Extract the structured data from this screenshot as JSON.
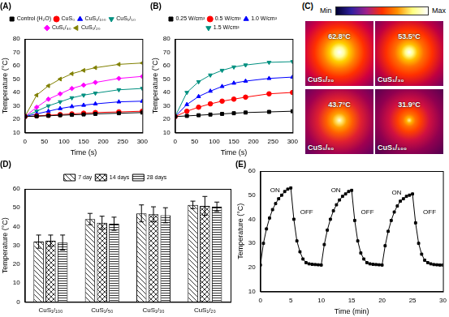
{
  "chart_data": [
    {
      "type": "line",
      "title": "(A)",
      "x_label": "Time (s)",
      "y_label": "Temperature (°C)",
      "x": [
        0,
        30,
        60,
        90,
        120,
        150,
        180,
        240,
        300
      ],
      "series": [
        {
          "name": "Control (H₂O)",
          "color": "#000000",
          "marker": "square",
          "values": [
            22,
            22.3,
            22.6,
            23,
            23.3,
            23.6,
            24,
            24.5,
            25
          ]
        },
        {
          "name": "CuS₀",
          "color": "#ff0000",
          "marker": "circle",
          "values": [
            22,
            22.5,
            23,
            23.5,
            24,
            24.5,
            25,
            25.5,
            26
          ]
        },
        {
          "name": "CuS₁/₁₀₀",
          "color": "#0000ff",
          "marker": "triangle-up",
          "values": [
            22,
            24,
            26,
            28,
            29.5,
            30.5,
            31.5,
            33,
            33.5
          ]
        },
        {
          "name": "CuS₁/₅₀",
          "color": "#009080",
          "marker": "triangle-down",
          "values": [
            22,
            26,
            30,
            33,
            36,
            38,
            39.5,
            42,
            43
          ]
        },
        {
          "name": "CuS₁/₃₀",
          "color": "#ff00ff",
          "marker": "diamond",
          "values": [
            22,
            29,
            35,
            39,
            43,
            45.5,
            47.5,
            50.5,
            52
          ]
        },
        {
          "name": "CuS₁/₂₀",
          "color": "#808000",
          "marker": "triangle-left",
          "values": [
            22,
            38,
            45,
            50,
            54,
            56.5,
            58.5,
            61,
            62
          ]
        }
      ],
      "xlim": [
        0,
        300
      ],
      "xticks": [
        0,
        50,
        100,
        150,
        200,
        250,
        300
      ],
      "ylim": [
        10,
        80
      ],
      "yticks": [
        10,
        20,
        30,
        40,
        50,
        60,
        70,
        80
      ],
      "legend": "top",
      "grid": false
    },
    {
      "type": "line",
      "title": "(B)",
      "x_label": "Time (s)",
      "y_label": "Temperature (°C)",
      "x": [
        0,
        30,
        60,
        90,
        120,
        150,
        180,
        240,
        300
      ],
      "series": [
        {
          "name": "0.25 W/cm²",
          "color": "#000000",
          "marker": "square",
          "values": [
            22,
            22.5,
            23,
            23.5,
            24,
            24.5,
            25,
            25.5,
            26
          ]
        },
        {
          "name": "0.5 W/cm²",
          "color": "#ff0000",
          "marker": "circle",
          "values": [
            22,
            26,
            29,
            31.5,
            33.5,
            35,
            36.5,
            39,
            40
          ]
        },
        {
          "name": "1.0 W/cm²",
          "color": "#0000ff",
          "marker": "triangle-up",
          "values": [
            22,
            31,
            37,
            41,
            44.5,
            47,
            48.5,
            50.5,
            51.5
          ]
        },
        {
          "name": "1.5 W/cm²",
          "color": "#009080",
          "marker": "triangle-down",
          "values": [
            22,
            40,
            48,
            53,
            56.5,
            59,
            60.5,
            62.5,
            63
          ]
        }
      ],
      "xlim": [
        0,
        300
      ],
      "xticks": [
        0,
        50,
        100,
        150,
        200,
        250,
        300
      ],
      "ylim": [
        10,
        80
      ],
      "yticks": [
        10,
        20,
        30,
        40,
        50,
        60,
        70,
        80
      ],
      "legend": "top",
      "grid": false
    },
    {
      "type": "bar",
      "title": "(D)",
      "y_label": "Temperature (°C)",
      "categories": [
        "CuS₁/₁₀₀",
        "CuS₁/₅₀",
        "CuS₁/₃₀",
        "CuS₁/₂₀"
      ],
      "series": [
        {
          "name": "7 day",
          "color": "#000000",
          "values": [
            32,
            44,
            47,
            51.5
          ],
          "errors": [
            3.5,
            3,
            4.5,
            2
          ]
        },
        {
          "name": "14 days",
          "color": "#000000",
          "values": [
            32.5,
            42,
            46.5,
            51
          ],
          "errors": [
            3,
            3.5,
            4,
            5
          ]
        },
        {
          "name": "28 days",
          "color": "#000000",
          "values": [
            31.5,
            41.5,
            46,
            50.5
          ],
          "errors": [
            4,
            3.5,
            4,
            2.5
          ]
        }
      ],
      "ylim": [
        0,
        60
      ],
      "yticks": [
        0,
        10,
        20,
        30,
        40,
        50,
        60
      ],
      "legend": "top",
      "grid": false
    },
    {
      "type": "line",
      "title": "(E)",
      "x_label": "Time (min)",
      "y_label": "Temperature (°C)",
      "x": [
        0,
        0.5,
        1,
        1.5,
        2,
        2.5,
        3,
        3.5,
        4,
        4.5,
        5,
        5.5,
        6,
        6.5,
        7,
        7.5,
        8,
        8.5,
        9,
        9.5,
        10,
        10.5,
        11,
        11.5,
        12,
        12.5,
        13,
        13.5,
        14,
        14.5,
        15,
        15.5,
        16,
        16.5,
        17,
        17.5,
        18,
        18.5,
        19,
        19.5,
        20,
        20.5,
        21,
        21.5,
        22,
        22.5,
        23,
        23.5,
        24,
        24.5,
        25,
        25.5,
        26,
        26.5,
        27,
        27.5,
        28,
        28.5,
        29,
        29.5,
        30
      ],
      "values": [
        21,
        30,
        36,
        40.5,
        44,
        46.5,
        48.5,
        50,
        51.5,
        52.5,
        53,
        40,
        31,
        26.5,
        23.5,
        22,
        21.5,
        21.3,
        21.2,
        21.1,
        21,
        29.5,
        35.5,
        40,
        43.5,
        46,
        48,
        49.5,
        50.5,
        51.5,
        52,
        39.5,
        31,
        26,
        23.5,
        22,
        21.5,
        21.3,
        21.2,
        21.1,
        21,
        29,
        35,
        39.5,
        43,
        45.5,
        47.5,
        48.5,
        49.5,
        50,
        50.5,
        38.5,
        30,
        25.5,
        23,
        22,
        21.5,
        21.2,
        21.1,
        21,
        21
      ],
      "color": "#000000",
      "marker": "square",
      "annotations": [
        {
          "text": "ON",
          "x": 2.4,
          "y": 52
        },
        {
          "text": "OFF",
          "x": 7.6,
          "y": 43
        },
        {
          "text": "ON",
          "x": 12.4,
          "y": 52
        },
        {
          "text": "OFF",
          "x": 17.6,
          "y": 43
        },
        {
          "text": "ON",
          "x": 22.4,
          "y": 51
        },
        {
          "text": "OFF",
          "x": 27.8,
          "y": 43
        }
      ],
      "xlim": [
        0,
        30
      ],
      "xticks": [
        0,
        5,
        10,
        15,
        20,
        25,
        30
      ],
      "ylim": [
        10,
        60
      ],
      "yticks": [
        10,
        20,
        30,
        40,
        50,
        60
      ],
      "grid": false
    }
  ],
  "thermal_images": {
    "title": "(C)",
    "colorbar": {
      "min_label": "Min",
      "max_label": "Max"
    },
    "images": [
      {
        "label": "CuS₁/₂₀",
        "temperature": "62.8°C"
      },
      {
        "label": "CuS₁/₃₀",
        "temperature": "53.5°C"
      },
      {
        "label": "CuS₁/₅₀",
        "temperature": "43.7°C"
      },
      {
        "label": "CuS₁/₁₀₀",
        "temperature": "31.9°C"
      }
    ]
  }
}
